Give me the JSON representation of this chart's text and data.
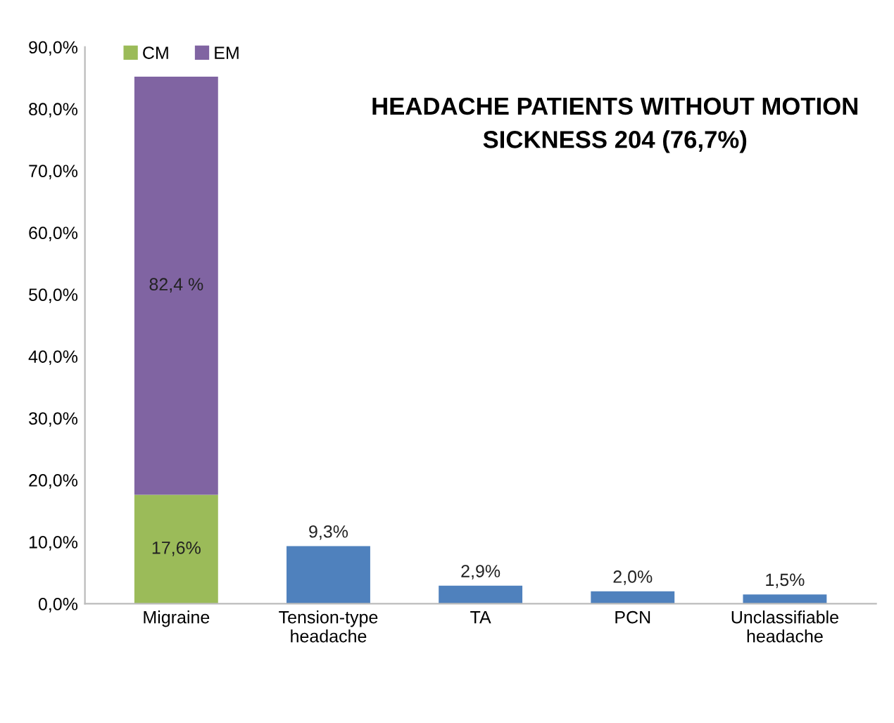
{
  "chart_data": {
    "type": "bar",
    "stacked": true,
    "title": "HEADACHE PATIENTS WITHOUT MOTION\nSICKNESS 204 (76,7%)",
    "categories": [
      "Migraine",
      "Tension-type\nheadache",
      "TA",
      "PCN",
      "Unclassifiable\nheadache"
    ],
    "series": [
      {
        "name": "CM",
        "color": "#9bbb59",
        "values": [
          17.6,
          null,
          null,
          null,
          null
        ],
        "value_labels": [
          "17,6%",
          null,
          null,
          null,
          null
        ]
      },
      {
        "name": "EM",
        "color": "#8064a2",
        "values": [
          67.6,
          null,
          null,
          null,
          null
        ]
      },
      {
        "color": "#4f81bd",
        "values": [
          null,
          9.3,
          2.9,
          2.0,
          1.5
        ],
        "value_labels": [
          null,
          "9,3%",
          "2,9%",
          "2,0%",
          "1,5%"
        ]
      }
    ],
    "ylim": [
      0,
      90
    ],
    "yticks": [
      {
        "value": 0,
        "label": "0,0%"
      },
      {
        "value": 10,
        "label": "10,0%"
      },
      {
        "value": 20,
        "label": "20,0%"
      },
      {
        "value": 30,
        "label": "30,0%"
      },
      {
        "value": 40,
        "label": "40,0%"
      },
      {
        "value": 50,
        "label": "50,0%"
      },
      {
        "value": 60,
        "label": "60,0%"
      },
      {
        "value": 70,
        "label": "70,0%"
      },
      {
        "value": 80,
        "label": "80,0%"
      },
      {
        "value": 90,
        "label": "90,0%"
      }
    ],
    "annotations": [
      "82,4 %"
    ],
    "grid": false,
    "legend": "top left"
  }
}
